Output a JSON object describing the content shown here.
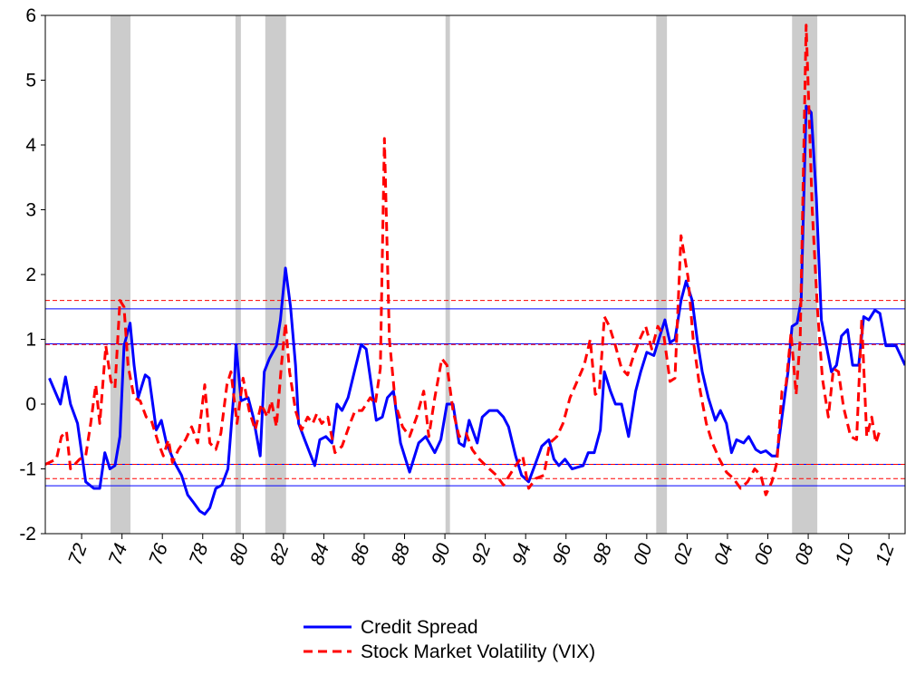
{
  "chart_data": {
    "type": "line",
    "xlim": [
      1970.2,
      2012.8
    ],
    "ylim": [
      -2,
      6
    ],
    "yticks": [
      -2,
      -1,
      0,
      1,
      2,
      3,
      4,
      5,
      6
    ],
    "xticks": [
      {
        "value": 1972,
        "label": "72"
      },
      {
        "value": 1974,
        "label": "74"
      },
      {
        "value": 1976,
        "label": "76"
      },
      {
        "value": 1978,
        "label": "78"
      },
      {
        "value": 1980,
        "label": "80"
      },
      {
        "value": 1982,
        "label": "82"
      },
      {
        "value": 1984,
        "label": "84"
      },
      {
        "value": 1986,
        "label": "86"
      },
      {
        "value": 1988,
        "label": "88"
      },
      {
        "value": 1990,
        "label": "90"
      },
      {
        "value": 1992,
        "label": "92"
      },
      {
        "value": 1994,
        "label": "94"
      },
      {
        "value": 1996,
        "label": "96"
      },
      {
        "value": 1998,
        "label": "98"
      },
      {
        "value": 2000,
        "label": "00"
      },
      {
        "value": 2002,
        "label": "02"
      },
      {
        "value": 2004,
        "label": "04"
      },
      {
        "value": 2006,
        "label": "06"
      },
      {
        "value": 2008,
        "label": "08"
      },
      {
        "value": 2010,
        "label": "10"
      },
      {
        "value": 2012,
        "label": "12"
      }
    ],
    "shaded_periods": [
      [
        1973.43,
        1974.42
      ],
      [
        1979.62,
        1979.89
      ],
      [
        1981.1,
        1982.13
      ],
      [
        1990.03,
        1990.25
      ],
      [
        2000.47,
        2001.0
      ],
      [
        2007.2,
        2008.45
      ]
    ],
    "shade_color": "#cccccc",
    "series": [
      {
        "name": "Credit Spread",
        "color": "#0000ff",
        "dashed": false,
        "reference_lines": [
          1.47,
          0.93,
          -0.93,
          -1.26
        ],
        "x": [
          1970.4,
          1970.95,
          1971.2,
          1971.45,
          1971.8,
          1972.2,
          1972.6,
          1972.9,
          1973.15,
          1973.4,
          1973.65,
          1973.9,
          1974.1,
          1974.4,
          1974.6,
          1974.8,
          1975.15,
          1975.35,
          1975.7,
          1975.95,
          1976.2,
          1976.6,
          1976.95,
          1977.25,
          1977.5,
          1977.85,
          1978.1,
          1978.35,
          1978.65,
          1978.95,
          1979.25,
          1979.55,
          1979.65,
          1979.9,
          1980.25,
          1980.5,
          1980.85,
          1981.05,
          1981.3,
          1981.65,
          1981.85,
          1982.1,
          1982.35,
          1982.6,
          1982.75,
          1983.05,
          1983.55,
          1983.8,
          1984.1,
          1984.4,
          1984.65,
          1984.9,
          1985.2,
          1985.55,
          1985.85,
          1986.1,
          1986.35,
          1986.6,
          1986.9,
          1987.15,
          1987.45,
          1987.8,
          1988.25,
          1988.7,
          1989.05,
          1989.5,
          1989.8,
          1990.1,
          1990.4,
          1990.7,
          1990.95,
          1991.2,
          1991.6,
          1991.85,
          1992.2,
          1992.6,
          1992.9,
          1993.15,
          1993.5,
          1993.8,
          1994.15,
          1994.45,
          1994.8,
          1995.15,
          1995.4,
          1995.65,
          1995.95,
          1996.3,
          1996.85,
          1997.1,
          1997.4,
          1997.7,
          1997.9,
          1998.2,
          1998.45,
          1998.75,
          1999.1,
          1999.45,
          1999.7,
          2000.0,
          2000.35,
          2000.6,
          2000.9,
          2001.15,
          2001.4,
          2001.7,
          2001.95,
          2002.25,
          2002.5,
          2002.75,
          2003.05,
          2003.4,
          2003.65,
          2003.95,
          2004.2,
          2004.45,
          2004.8,
          2005.05,
          2005.4,
          2005.65,
          2005.9,
          2006.2,
          2006.45,
          2006.7,
          2007.0,
          2007.2,
          2007.45,
          2007.65,
          2007.9,
          2008.15,
          2008.4,
          2008.65,
          2009.15,
          2009.4,
          2009.65,
          2009.95,
          2010.2,
          2010.5,
          2010.75,
          2011.0,
          2011.3,
          2011.55,
          2011.85,
          2012.35,
          2012.8
        ],
        "values": [
          0.4,
          0.0,
          0.42,
          0.0,
          -0.3,
          -1.2,
          -1.3,
          -1.3,
          -0.75,
          -1.0,
          -0.95,
          -0.5,
          0.9,
          1.25,
          0.6,
          0.1,
          0.45,
          0.4,
          -0.4,
          -0.25,
          -0.6,
          -0.9,
          -1.1,
          -1.4,
          -1.5,
          -1.65,
          -1.7,
          -1.6,
          -1.3,
          -1.25,
          -1.0,
          0.2,
          0.92,
          0.05,
          0.1,
          -0.2,
          -0.8,
          0.5,
          0.7,
          0.9,
          1.3,
          2.1,
          1.5,
          0.6,
          -0.3,
          -0.55,
          -0.95,
          -0.55,
          -0.5,
          -0.6,
          0.0,
          -0.1,
          0.1,
          0.55,
          0.92,
          0.85,
          0.3,
          -0.25,
          -0.2,
          0.1,
          0.2,
          -0.6,
          -1.05,
          -0.6,
          -0.5,
          -0.75,
          -0.55,
          0.0,
          0.0,
          -0.6,
          -0.65,
          -0.25,
          -0.6,
          -0.2,
          -0.1,
          -0.1,
          -0.2,
          -0.35,
          -0.8,
          -1.1,
          -1.2,
          -0.95,
          -0.65,
          -0.55,
          -0.85,
          -0.95,
          -0.85,
          -1.0,
          -0.95,
          -0.75,
          -0.75,
          -0.4,
          0.5,
          0.2,
          0.0,
          0.0,
          -0.5,
          0.2,
          0.5,
          0.8,
          0.75,
          1.0,
          1.3,
          0.95,
          1.0,
          1.6,
          1.9,
          1.6,
          1.0,
          0.5,
          0.1,
          -0.25,
          -0.1,
          -0.3,
          -0.75,
          -0.55,
          -0.6,
          -0.5,
          -0.7,
          -0.75,
          -0.72,
          -0.8,
          -0.8,
          -0.2,
          0.5,
          1.2,
          1.25,
          1.6,
          4.6,
          4.5,
          3.2,
          1.3,
          0.5,
          0.6,
          1.05,
          1.15,
          0.6,
          0.6,
          1.35,
          1.3,
          1.45,
          1.4,
          0.9,
          0.9,
          0.6
        ]
      },
      {
        "name": "Stock Market Volatility (VIX)",
        "color": "#ff0000",
        "dashed": true,
        "reference_lines": [
          1.6,
          0.92,
          -0.93,
          -1.15
        ],
        "x": [
          1970.2,
          1970.75,
          1971.0,
          1971.25,
          1971.45,
          1971.9,
          1972.2,
          1972.45,
          1972.7,
          1972.9,
          1973.2,
          1973.45,
          1973.65,
          1973.9,
          1974.1,
          1974.3,
          1974.6,
          1974.9,
          1975.2,
          1975.45,
          1975.8,
          1976.05,
          1976.3,
          1976.5,
          1976.8,
          1977.15,
          1977.45,
          1977.75,
          1978.1,
          1978.35,
          1978.65,
          1978.9,
          1979.2,
          1979.4,
          1979.7,
          1980.0,
          1980.3,
          1980.6,
          1980.9,
          1981.2,
          1981.4,
          1981.65,
          1981.9,
          1982.1,
          1982.3,
          1982.6,
          1982.9,
          1983.2,
          1983.45,
          1983.65,
          1983.9,
          1984.2,
          1984.55,
          1984.9,
          1985.3,
          1985.55,
          1985.9,
          1986.3,
          1986.55,
          1986.8,
          1987.0,
          1987.25,
          1987.55,
          1987.9,
          1988.25,
          1988.6,
          1988.95,
          1989.2,
          1989.5,
          1989.85,
          1990.1,
          1990.4,
          1990.7,
          1991.05,
          1991.35,
          1991.7,
          1992.2,
          1992.55,
          1992.9,
          1993.2,
          1993.5,
          1993.85,
          1994.15,
          1994.5,
          1994.9,
          1995.2,
          1995.55,
          1995.85,
          1996.2,
          1996.55,
          1996.9,
          1997.2,
          1997.45,
          1997.65,
          1997.9,
          1998.15,
          1998.45,
          1998.75,
          1999.05,
          1999.35,
          1999.65,
          1999.95,
          2000.25,
          2000.55,
          2000.85,
          2001.15,
          2001.4,
          2001.7,
          2002.05,
          2002.3,
          2002.65,
          2002.95,
          2003.25,
          2003.6,
          2003.95,
          2004.3,
          2004.65,
          2005.0,
          2005.35,
          2005.65,
          2005.9,
          2006.2,
          2006.45,
          2006.7,
          2006.9,
          2007.15,
          2007.4,
          2007.6,
          2007.9,
          2008.2,
          2008.45,
          2008.7,
          2009.0,
          2009.25,
          2009.5,
          2009.75,
          2010.1,
          2010.4,
          2010.65,
          2010.9,
          2011.15,
          2011.35,
          2011.55
        ],
        "values": [
          -0.93,
          -0.85,
          -0.5,
          -0.42,
          -1.0,
          -0.85,
          -0.8,
          -0.3,
          0.3,
          -0.3,
          0.9,
          0.35,
          0.25,
          1.6,
          1.5,
          0.6,
          0.1,
          0.05,
          -0.2,
          -0.25,
          -0.6,
          -0.8,
          -0.55,
          -0.9,
          -0.7,
          -0.55,
          -0.35,
          -0.6,
          0.3,
          -0.6,
          -0.7,
          -0.45,
          0.3,
          0.5,
          -0.3,
          0.4,
          -0.1,
          -0.4,
          0.0,
          -0.2,
          0.05,
          -0.35,
          0.6,
          1.25,
          0.5,
          -0.1,
          -0.4,
          -0.2,
          -0.3,
          -0.15,
          -0.3,
          -0.2,
          -0.75,
          -0.65,
          -0.3,
          -0.1,
          -0.1,
          0.1,
          0.0,
          0.55,
          4.1,
          1.0,
          0.0,
          -0.35,
          -0.5,
          -0.2,
          0.2,
          -0.5,
          0.1,
          0.7,
          0.6,
          -0.1,
          -0.5,
          -0.45,
          -0.7,
          -0.85,
          -1.0,
          -1.1,
          -1.25,
          -1.1,
          -0.95,
          -0.8,
          -1.3,
          -1.15,
          -1.1,
          -0.6,
          -0.5,
          -0.3,
          0.1,
          0.35,
          0.6,
          1.0,
          0.15,
          0.2,
          1.35,
          1.2,
          0.9,
          0.55,
          0.45,
          0.75,
          1.0,
          1.2,
          0.85,
          1.2,
          1.05,
          0.35,
          0.4,
          2.6,
          1.95,
          1.0,
          0.2,
          -0.3,
          -0.6,
          -0.85,
          -1.05,
          -1.15,
          -1.3,
          -1.2,
          -1.0,
          -1.1,
          -1.4,
          -1.2,
          -0.9,
          0.2,
          0.3,
          1.1,
          0.15,
          1.0,
          5.85,
          3.0,
          1.5,
          0.4,
          -0.2,
          0.55,
          0.5,
          -0.05,
          -0.5,
          -0.55,
          1.3,
          -0.5,
          -0.2,
          -0.6,
          -0.4
        ]
      }
    ]
  }
}
